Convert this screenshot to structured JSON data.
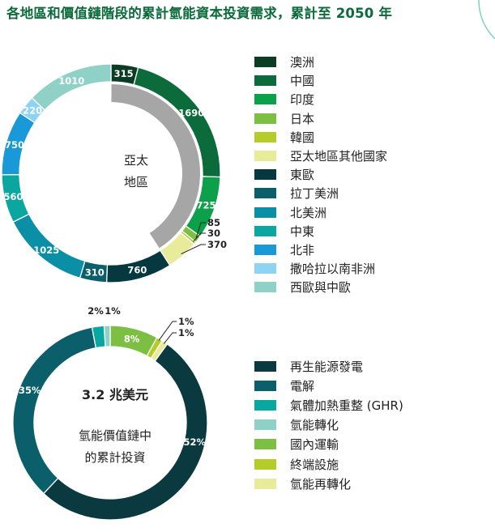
{
  "title": "各地區和價值鏈階段的累計氫能資本投資需求，累計至 2050 年",
  "chart_data": [
    {
      "type": "pie",
      "variant": "donut",
      "center_label": [
        "亞太",
        "地區"
      ],
      "categories": [
        "澳洲",
        "中國",
        "印度",
        "日本",
        "韓國",
        "亞太地區其他國家",
        "東歐",
        "拉丁美洲",
        "北美洲",
        "中東",
        "北非",
        "撒哈拉以南非洲",
        "西歐與中歐"
      ],
      "values": [
        315,
        1690,
        725,
        85,
        30,
        370,
        760,
        310,
        1025,
        560,
        750,
        220,
        1010
      ],
      "labels": [
        "315",
        "1690",
        "725",
        "85",
        "30",
        "370",
        "760",
        "310",
        "1025",
        "560",
        "750",
        "220",
        "1010"
      ],
      "colors": [
        "#0b3d24",
        "#0b6b3a",
        "#0da04a",
        "#7dbf42",
        "#b6cc2a",
        "#e8eb9a",
        "#06393f",
        "#0b5f6b",
        "#0b8fa6",
        "#0aa6a0",
        "#1a99d8",
        "#8ed4f2",
        "#8fd1c6"
      ],
      "inner_group": {
        "name": "亞太地區",
        "members": [
          "澳洲",
          "中國",
          "印度",
          "日本",
          "韓國",
          "亞太地區其他國家"
        ]
      }
    },
    {
      "type": "pie",
      "variant": "donut",
      "center_total": "3.2 兆美元",
      "center_caption": [
        "氫能價值鏈中",
        "的累計投資"
      ],
      "categories": [
        "再生能源發電",
        "電解",
        "氣體加熱重整 (GHR)",
        "氫能轉化",
        "國內運輸",
        "終端設施",
        "氫能再轉化"
      ],
      "values": [
        52,
        35,
        2,
        1,
        8,
        1,
        1
      ],
      "labels": [
        "52%",
        "35%",
        "2%",
        "1%",
        "8%",
        "1%",
        "1%"
      ],
      "colors": [
        "#0a3a40",
        "#0b5f6b",
        "#0aa6a0",
        "#8fd1c6",
        "#7dbf42",
        "#b6cc2a",
        "#e8eb9a"
      ]
    }
  ]
}
